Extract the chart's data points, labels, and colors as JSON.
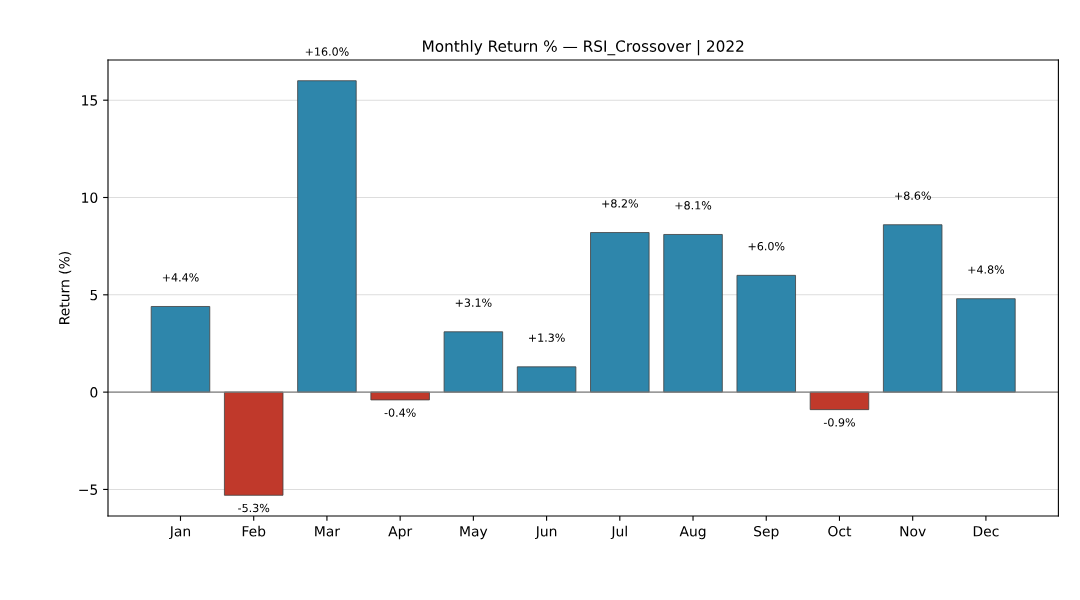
{
  "chart_data": {
    "type": "bar",
    "title": "Monthly Return % — RSI_Crossover | 2022",
    "ylabel": "Return (%)",
    "categories": [
      "Jan",
      "Feb",
      "Mar",
      "Apr",
      "May",
      "Jun",
      "Jul",
      "Aug",
      "Sep",
      "Oct",
      "Nov",
      "Dec"
    ],
    "values": [
      4.4,
      -5.3,
      16.0,
      -0.4,
      3.1,
      1.3,
      8.2,
      8.1,
      6.0,
      -0.9,
      8.6,
      4.8
    ],
    "colors": [
      "#2e86ab",
      "#c0392b",
      "#2e86ab",
      "#c0392b",
      "#2e86ab",
      "#2e86ab",
      "#2e86ab",
      "#2e86ab",
      "#2e86ab",
      "#c0392b",
      "#2e86ab",
      "#2e86ab"
    ],
    "value_labels": [
      "+4.4%",
      "-5.3%",
      "+16.0%",
      "-0.4%",
      "+3.1%",
      "+1.3%",
      "+8.2%",
      "+8.1%",
      "+6.0%",
      "-0.9%",
      "+8.6%",
      "+4.8%"
    ],
    "ylim": [
      -6.365,
      17.065
    ],
    "yticks": [
      {
        "value": -5,
        "label": "−5"
      },
      0,
      5,
      10,
      15
    ],
    "ref_lines": [
      {
        "axis": "y",
        "value": 0,
        "color": "#808080"
      }
    ],
    "grid": "y",
    "legend": false
  }
}
